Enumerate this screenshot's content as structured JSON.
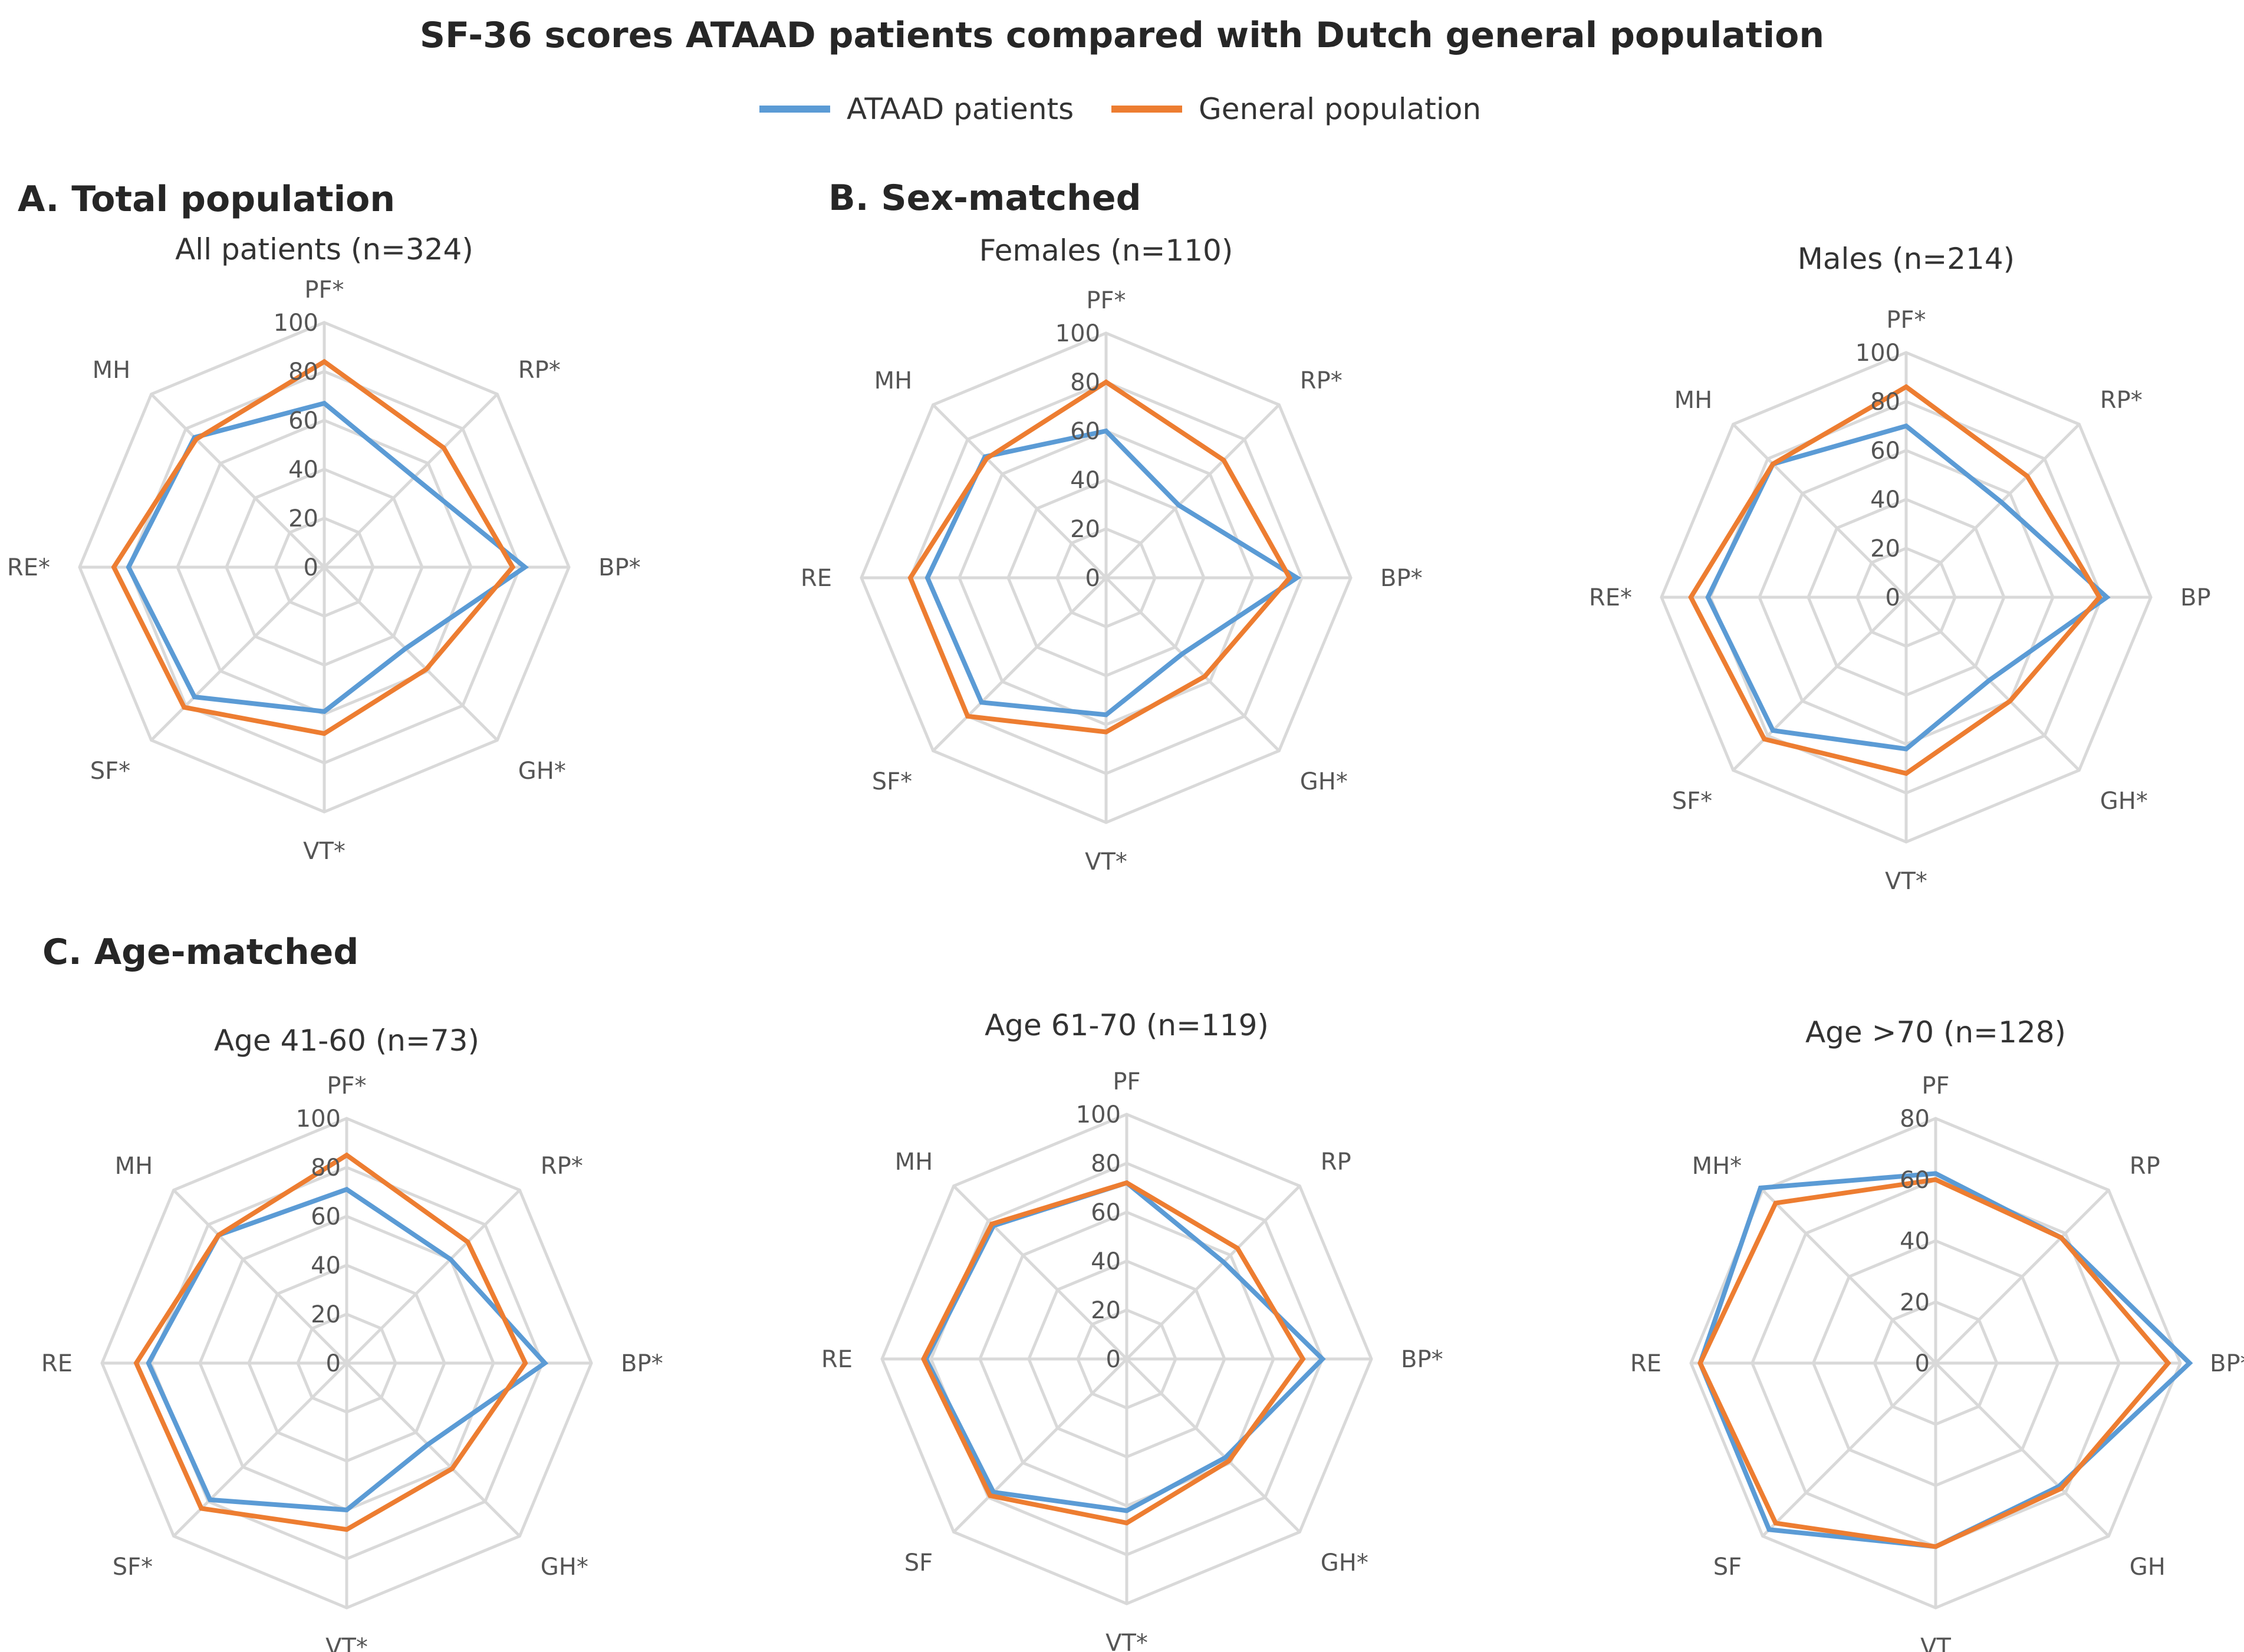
{
  "title": "SF-36 scores ATAAD patients compared with Dutch general population",
  "colors": {
    "ataad": "#5b9bd5",
    "general": "#ed7d31",
    "grid": "#d9d9d9"
  },
  "legend": [
    {
      "label": "ATAAD patients",
      "color": "#5b9bd5"
    },
    {
      "label": "General population",
      "color": "#ed7d31"
    }
  ],
  "sections": {
    "a": "A. Total population",
    "b": "B. Sex-matched",
    "c": "C. Age-matched"
  },
  "chart_data": [
    {
      "type": "radar",
      "title": "All patients (n=324)",
      "axes": [
        "PF*",
        "RP*",
        "BP*",
        "GH*",
        "VT*",
        "SF*",
        "RE*",
        "MH"
      ],
      "ticks": [
        "0",
        "20",
        "40",
        "60",
        "80",
        "100"
      ],
      "rmax": 100,
      "series": [
        {
          "name": "ATAAD patients",
          "values": [
            67,
            52,
            82,
            47,
            59,
            75,
            80,
            75
          ]
        },
        {
          "name": "General population",
          "values": [
            84,
            69,
            77,
            59,
            68,
            81,
            86,
            74
          ]
        }
      ]
    },
    {
      "type": "radar",
      "title": "Females (n=110)",
      "axes": [
        "PF*",
        "RP*",
        "BP*",
        "GH*",
        "VT*",
        "SF*",
        "RE",
        "MH"
      ],
      "ticks": [
        "0",
        "20",
        "40",
        "60",
        "80",
        "100"
      ],
      "rmax": 100,
      "series": [
        {
          "name": "ATAAD patients",
          "values": [
            60,
            42,
            78,
            44,
            56,
            72,
            73,
            70
          ]
        },
        {
          "name": "General population",
          "values": [
            80,
            68,
            75,
            57,
            63,
            80,
            80,
            69
          ]
        }
      ]
    },
    {
      "type": "radar",
      "title": "Males (n=214)",
      "axes": [
        "PF*",
        "RP*",
        "BP",
        "GH*",
        "VT*",
        "SF*",
        "RE*",
        "MH"
      ],
      "ticks": [
        "0",
        "20",
        "40",
        "60",
        "80",
        "100"
      ],
      "rmax": 100,
      "series": [
        {
          "name": "ATAAD patients",
          "values": [
            70,
            55,
            82,
            48,
            62,
            77,
            81,
            77
          ]
        },
        {
          "name": "General population",
          "values": [
            86,
            70,
            79,
            60,
            72,
            82,
            88,
            77
          ]
        }
      ]
    },
    {
      "type": "radar",
      "title": "Age 41-60 (n=73)",
      "axes": [
        "PF*",
        "RP*",
        "BP*",
        "GH*",
        "VT*",
        "SF*",
        "RE",
        "MH"
      ],
      "ticks": [
        "0",
        "20",
        "40",
        "60",
        "80",
        "100"
      ],
      "rmax": 100,
      "series": [
        {
          "name": "ATAAD patients",
          "values": [
            71,
            60,
            81,
            47,
            60,
            79,
            81,
            74
          ]
        },
        {
          "name": "General population",
          "values": [
            85,
            70,
            73,
            61,
            68,
            84,
            86,
            74
          ]
        }
      ]
    },
    {
      "type": "radar",
      "title": "Age 61-70 (n=119)",
      "axes": [
        "PF",
        "RP",
        "BP*",
        "GH*",
        "VT*",
        "SF",
        "RE",
        "MH"
      ],
      "ticks": [
        "0",
        "20",
        "40",
        "60",
        "80",
        "100"
      ],
      "rmax": 100,
      "series": [
        {
          "name": "ATAAD patients",
          "values": [
            72,
            56,
            80,
            57,
            62,
            77,
            82,
            77
          ]
        },
        {
          "name": "General population",
          "values": [
            72,
            64,
            72,
            59,
            67,
            79,
            83,
            78
          ]
        }
      ]
    },
    {
      "type": "radar",
      "title": "Age >70  (n=128)",
      "axes": [
        "PF",
        "RP",
        "BP*",
        "GH",
        "VT",
        "SF",
        "RE",
        "MH*"
      ],
      "ticks": [
        "0",
        "20",
        "40",
        "60",
        "80"
      ],
      "rmax": 80,
      "series": [
        {
          "name": "ATAAD patients",
          "values": [
            62,
            58,
            83,
            57,
            60,
            77,
            77,
            81
          ]
        },
        {
          "name": "General population",
          "values": [
            60,
            58,
            76,
            58,
            60,
            74,
            77,
            74
          ]
        }
      ]
    }
  ]
}
